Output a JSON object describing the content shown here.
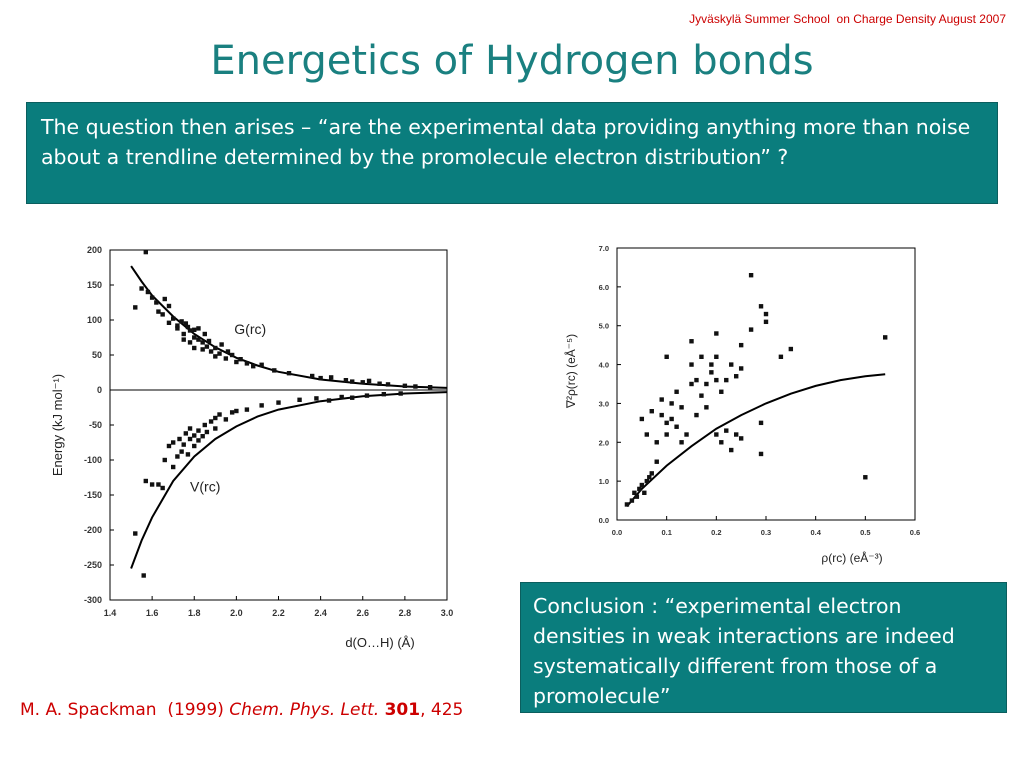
{
  "slide": {
    "header_note": "Jyväskylä Summer School  on Charge Density August 2007",
    "title": "Energetics of Hydrogen bonds",
    "question": "The question then arises – “are the experimental data providing anything more than noise about a trendline determined by the promolecule electron distribution” ?",
    "conclusion": "Conclusion : “experimental electron densities in weak interactions are indeed systematically different from those of a promolecule”",
    "citation": {
      "authors": "M. A. Spackman  (1999) ",
      "journal": "Chem. Phys. Lett.",
      "volume": "301",
      "pages": ", 425"
    }
  },
  "chart_data": [
    {
      "type": "scatter",
      "xlabel": "d(O…H)  (Å)",
      "ylabel": "Energy  (kJ mol⁻¹)",
      "xlim": [
        1.4,
        3.0
      ],
      "ylim": [
        -300,
        200
      ],
      "xticks": [
        "1.4",
        "1.6",
        "1.8",
        "2.0",
        "2.2",
        "2.4",
        "2.6",
        "2.8",
        "3.0"
      ],
      "yticks": [
        "200",
        "150",
        "100",
        "50",
        "0",
        "-50",
        "-100",
        "-150",
        "-200",
        "-250",
        "-300"
      ],
      "series": [
        {
          "name": "G(rc)",
          "trend": [
            [
              1.5,
              177
            ],
            [
              1.55,
              155
            ],
            [
              1.6,
              135
            ],
            [
              1.7,
              105
            ],
            [
              1.8,
              80
            ],
            [
              1.9,
              61
            ],
            [
              2.0,
              46
            ],
            [
              2.1,
              35
            ],
            [
              2.2,
              26
            ],
            [
              2.4,
              15
            ],
            [
              2.6,
              9
            ],
            [
              2.8,
              5
            ],
            [
              3.0,
              3
            ]
          ],
          "points": [
            [
              1.52,
              118
            ],
            [
              1.57,
              197
            ],
            [
              1.55,
              145
            ],
            [
              1.58,
              140
            ],
            [
              1.6,
              132
            ],
            [
              1.62,
              125
            ],
            [
              1.63,
              112
            ],
            [
              1.65,
              108
            ],
            [
              1.66,
              130
            ],
            [
              1.68,
              120
            ],
            [
              1.68,
              96
            ],
            [
              1.7,
              102
            ],
            [
              1.72,
              92
            ],
            [
              1.72,
              88
            ],
            [
              1.74,
              98
            ],
            [
              1.75,
              80
            ],
            [
              1.75,
              72
            ],
            [
              1.76,
              95
            ],
            [
              1.77,
              90
            ],
            [
              1.78,
              85
            ],
            [
              1.78,
              68
            ],
            [
              1.8,
              86
            ],
            [
              1.8,
              75
            ],
            [
              1.8,
              60
            ],
            [
              1.82,
              72
            ],
            [
              1.82,
              88
            ],
            [
              1.84,
              68
            ],
            [
              1.84,
              58
            ],
            [
              1.85,
              80
            ],
            [
              1.86,
              62
            ],
            [
              1.87,
              70
            ],
            [
              1.88,
              55
            ],
            [
              1.9,
              60
            ],
            [
              1.9,
              48
            ],
            [
              1.92,
              52
            ],
            [
              1.93,
              65
            ],
            [
              1.95,
              45
            ],
            [
              1.96,
              55
            ],
            [
              1.98,
              50
            ],
            [
              2.0,
              40
            ],
            [
              2.02,
              44
            ],
            [
              2.05,
              38
            ],
            [
              2.08,
              34
            ],
            [
              2.12,
              36
            ],
            [
              2.18,
              28
            ],
            [
              2.25,
              24
            ],
            [
              2.36,
              20
            ],
            [
              2.4,
              17
            ],
            [
              2.45,
              18
            ],
            [
              2.52,
              14
            ],
            [
              2.55,
              12
            ],
            [
              2.6,
              11
            ],
            [
              2.63,
              13
            ],
            [
              2.68,
              9
            ],
            [
              2.72,
              8
            ],
            [
              2.8,
              6
            ],
            [
              2.85,
              5
            ],
            [
              2.92,
              4
            ]
          ]
        },
        {
          "name": "V(rc)",
          "trend": [
            [
              1.5,
              -255
            ],
            [
              1.55,
              -215
            ],
            [
              1.6,
              -182
            ],
            [
              1.7,
              -130
            ],
            [
              1.8,
              -95
            ],
            [
              1.9,
              -70
            ],
            [
              2.0,
              -52
            ],
            [
              2.1,
              -38
            ],
            [
              2.2,
              -28
            ],
            [
              2.4,
              -16
            ],
            [
              2.6,
              -9
            ],
            [
              2.8,
              -5
            ],
            [
              3.0,
              -3
            ]
          ],
          "points": [
            [
              1.52,
              -205
            ],
            [
              1.56,
              -265
            ],
            [
              1.57,
              -130
            ],
            [
              1.6,
              -135
            ],
            [
              1.63,
              -135
            ],
            [
              1.65,
              -140
            ],
            [
              1.66,
              -100
            ],
            [
              1.68,
              -80
            ],
            [
              1.7,
              -110
            ],
            [
              1.7,
              -75
            ],
            [
              1.72,
              -95
            ],
            [
              1.73,
              -70
            ],
            [
              1.74,
              -88
            ],
            [
              1.75,
              -78
            ],
            [
              1.76,
              -62
            ],
            [
              1.77,
              -92
            ],
            [
              1.78,
              -70
            ],
            [
              1.78,
              -55
            ],
            [
              1.8,
              -80
            ],
            [
              1.8,
              -65
            ],
            [
              1.82,
              -72
            ],
            [
              1.82,
              -58
            ],
            [
              1.84,
              -66
            ],
            [
              1.85,
              -50
            ],
            [
              1.86,
              -60
            ],
            [
              1.88,
              -45
            ],
            [
              1.9,
              -55
            ],
            [
              1.9,
              -40
            ],
            [
              1.92,
              -35
            ],
            [
              1.95,
              -42
            ],
            [
              1.98,
              -32
            ],
            [
              2.0,
              -30
            ],
            [
              2.05,
              -28
            ],
            [
              2.12,
              -22
            ],
            [
              2.2,
              -18
            ],
            [
              2.3,
              -14
            ],
            [
              2.38,
              -12
            ],
            [
              2.44,
              -15
            ],
            [
              2.5,
              -10
            ],
            [
              2.55,
              -11
            ],
            [
              2.62,
              -8
            ],
            [
              2.7,
              -6
            ],
            [
              2.78,
              -5
            ]
          ]
        }
      ]
    },
    {
      "type": "scatter",
      "xlabel": "ρ(rc)  (eÅ⁻³)",
      "ylabel": "∇²ρ(rc)  (eÅ⁻⁵)",
      "xlim": [
        0.0,
        0.6
      ],
      "ylim": [
        0.0,
        7.0
      ],
      "xticks": [
        "0.0",
        "0.1",
        "0.2",
        "0.3",
        "0.4",
        "0.5",
        "0.6"
      ],
      "yticks": [
        "7.0",
        "6.0",
        "5.0",
        "4.0",
        "3.0",
        "2.0",
        "1.0",
        "0.0"
      ],
      "series": [
        {
          "trend": [
            [
              0.02,
              0.35
            ],
            [
              0.05,
              0.8
            ],
            [
              0.1,
              1.4
            ],
            [
              0.15,
              1.9
            ],
            [
              0.2,
              2.35
            ],
            [
              0.25,
              2.7
            ],
            [
              0.3,
              3.0
            ],
            [
              0.35,
              3.25
            ],
            [
              0.4,
              3.45
            ],
            [
              0.45,
              3.6
            ],
            [
              0.5,
              3.7
            ],
            [
              0.54,
              3.75
            ]
          ],
          "points": [
            [
              0.02,
              0.4
            ],
            [
              0.03,
              0.5
            ],
            [
              0.035,
              0.7
            ],
            [
              0.04,
              0.6
            ],
            [
              0.045,
              0.8
            ],
            [
              0.05,
              0.9
            ],
            [
              0.055,
              0.7
            ],
            [
              0.06,
              1.0
            ],
            [
              0.065,
              1.1
            ],
            [
              0.07,
              1.2
            ],
            [
              0.05,
              2.6
            ],
            [
              0.06,
              2.2
            ],
            [
              0.07,
              2.8
            ],
            [
              0.08,
              1.5
            ],
            [
              0.08,
              2.0
            ],
            [
              0.09,
              2.7
            ],
            [
              0.09,
              3.1
            ],
            [
              0.1,
              2.2
            ],
            [
              0.1,
              2.5
            ],
            [
              0.11,
              2.6
            ],
            [
              0.11,
              3.0
            ],
            [
              0.12,
              2.4
            ],
            [
              0.12,
              3.3
            ],
            [
              0.13,
              2.0
            ],
            [
              0.13,
              2.9
            ],
            [
              0.14,
              2.2
            ],
            [
              0.15,
              3.5
            ],
            [
              0.15,
              4.0
            ],
            [
              0.16,
              2.7
            ],
            [
              0.16,
              3.6
            ],
            [
              0.17,
              3.2
            ],
            [
              0.17,
              4.2
            ],
            [
              0.18,
              2.9
            ],
            [
              0.18,
              3.5
            ],
            [
              0.19,
              3.8
            ],
            [
              0.19,
              4.0
            ],
            [
              0.2,
              3.6
            ],
            [
              0.2,
              4.2
            ],
            [
              0.21,
              3.3
            ],
            [
              0.22,
              3.6
            ],
            [
              0.23,
              4.0
            ],
            [
              0.24,
              3.7
            ],
            [
              0.25,
              3.9
            ],
            [
              0.25,
              4.5
            ],
            [
              0.21,
              2.0
            ],
            [
              0.22,
              2.3
            ],
            [
              0.23,
              1.8
            ],
            [
              0.24,
              2.2
            ],
            [
              0.25,
              2.1
            ],
            [
              0.2,
              2.2
            ],
            [
              0.15,
              4.6
            ],
            [
              0.1,
              4.2
            ],
            [
              0.2,
              4.8
            ],
            [
              0.27,
              4.9
            ],
            [
              0.29,
              5.5
            ],
            [
              0.3,
              5.3
            ],
            [
              0.3,
              5.1
            ],
            [
              0.27,
              6.3
            ],
            [
              0.33,
              4.2
            ],
            [
              0.35,
              4.4
            ],
            [
              0.29,
              2.5
            ],
            [
              0.29,
              1.7
            ],
            [
              0.5,
              1.1
            ],
            [
              0.54,
              4.7
            ]
          ]
        }
      ]
    }
  ]
}
